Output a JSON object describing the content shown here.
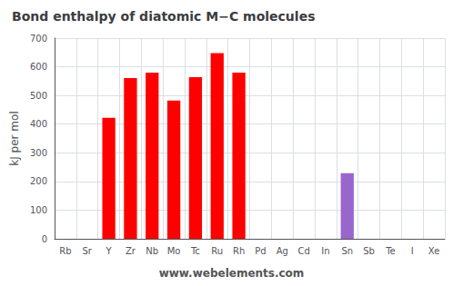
{
  "chart_data": {
    "type": "bar",
    "title": "Bond enthalpy of diatomic M−C molecules",
    "ylabel": "kJ per mol",
    "annotation": "www.webelements.com",
    "categories": [
      "Rb",
      "Sr",
      "Y",
      "Zr",
      "Nb",
      "Mo",
      "Tc",
      "Ru",
      "Rh",
      "Pd",
      "Ag",
      "Cd",
      "In",
      "Sn",
      "Sb",
      "Te",
      "I",
      "Xe"
    ],
    "values": [
      0,
      0,
      422,
      561,
      580,
      482,
      564,
      648,
      580,
      null,
      null,
      0,
      0,
      229,
      0,
      0,
      0,
      0
    ],
    "colors": [
      null,
      null,
      "red",
      "red",
      "red",
      "red",
      "red",
      "red",
      "red",
      null,
      null,
      null,
      null,
      "#9966cc",
      null,
      null,
      null,
      null
    ],
    "ylim": [
      0,
      700
    ],
    "yticks": [
      0,
      100,
      200,
      300,
      400,
      500,
      600,
      700
    ],
    "grid": true
  }
}
